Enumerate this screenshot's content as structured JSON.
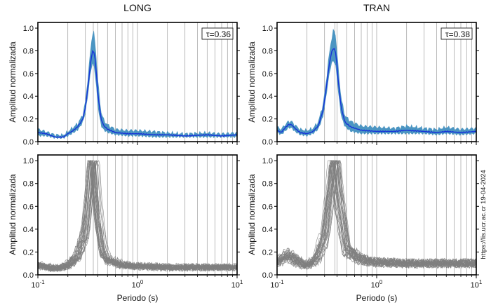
{
  "credit": "https://lis.ucr.ac.cr 19-04-2024",
  "colors": {
    "band": "#4b95c2",
    "mean": "#1733d8",
    "individual": "#7f7f7f",
    "grid": "#8c8c8c"
  },
  "chart_data": [
    {
      "type": "line",
      "panel": "top-left",
      "title": "LONG",
      "xlabel": "",
      "ylabel": "Amplitud normalizada",
      "xscale": "log",
      "xlim": [
        0.1,
        10
      ],
      "ylim": [
        0,
        1.05
      ],
      "x_tick_labels": [
        "10-1",
        "100",
        "101"
      ],
      "y_tick_labels": [
        "0.0",
        "0.2",
        "0.4",
        "0.6",
        "0.8",
        "1.0"
      ],
      "annotation": "τ=0.36",
      "vertical_gridlines_periods": [
        0.2,
        0.3,
        0.36,
        0.4,
        0.5,
        0.6,
        0.7,
        0.8,
        0.9,
        1,
        2,
        3,
        4,
        5,
        6,
        7,
        8,
        9,
        10
      ],
      "series": [
        {
          "style": "mean line with shaded band",
          "x": [
            0.1,
            0.12,
            0.15,
            0.18,
            0.2,
            0.22,
            0.25,
            0.28,
            0.3,
            0.32,
            0.34,
            0.36,
            0.38,
            0.4,
            0.43,
            0.46,
            0.5,
            0.6,
            0.8,
            1.0,
            1.5,
            2,
            3,
            5,
            7,
            10
          ],
          "mean": [
            0.08,
            0.07,
            0.04,
            0.04,
            0.07,
            0.09,
            0.13,
            0.19,
            0.3,
            0.5,
            0.72,
            0.82,
            0.7,
            0.42,
            0.2,
            0.14,
            0.11,
            0.08,
            0.07,
            0.07,
            0.06,
            0.06,
            0.05,
            0.06,
            0.05,
            0.06
          ],
          "lower": [
            0.05,
            0.05,
            0.03,
            0.03,
            0.05,
            0.07,
            0.1,
            0.16,
            0.25,
            0.42,
            0.63,
            0.7,
            0.55,
            0.3,
            0.14,
            0.1,
            0.08,
            0.06,
            0.05,
            0.05,
            0.04,
            0.04,
            0.04,
            0.04,
            0.04,
            0.04
          ],
          "upper": [
            0.11,
            0.09,
            0.06,
            0.06,
            0.09,
            0.12,
            0.16,
            0.23,
            0.36,
            0.6,
            0.85,
            1.0,
            0.85,
            0.55,
            0.27,
            0.19,
            0.15,
            0.11,
            0.1,
            0.1,
            0.09,
            0.08,
            0.07,
            0.08,
            0.07,
            0.08
          ]
        }
      ]
    },
    {
      "type": "line",
      "panel": "top-right",
      "title": "TRAN",
      "xlabel": "",
      "ylabel": "Amplitud normalizada",
      "xscale": "log",
      "xlim": [
        0.1,
        10
      ],
      "ylim": [
        0,
        1.05
      ],
      "x_tick_labels": [
        "10-1",
        "100",
        "101"
      ],
      "y_tick_labels": [
        "0.0",
        "0.2",
        "0.4",
        "0.6",
        "0.8",
        "1.0"
      ],
      "annotation": "τ=0.38",
      "vertical_gridlines_periods": [
        0.2,
        0.3,
        0.38,
        0.4,
        0.5,
        0.6,
        0.7,
        0.8,
        0.9,
        1,
        2,
        3,
        4,
        5,
        6,
        7,
        8,
        9,
        10
      ],
      "series": [
        {
          "style": "mean line with shaded band",
          "x": [
            0.1,
            0.11,
            0.12,
            0.13,
            0.14,
            0.15,
            0.17,
            0.2,
            0.23,
            0.26,
            0.29,
            0.31,
            0.33,
            0.35,
            0.37,
            0.39,
            0.41,
            0.44,
            0.48,
            0.55,
            0.7,
            1.0,
            1.5,
            2,
            3,
            4,
            5,
            7,
            10
          ],
          "mean": [
            0.1,
            0.08,
            0.12,
            0.15,
            0.15,
            0.12,
            0.08,
            0.07,
            0.09,
            0.14,
            0.28,
            0.45,
            0.65,
            0.78,
            0.83,
            0.78,
            0.55,
            0.3,
            0.17,
            0.13,
            0.1,
            0.09,
            0.09,
            0.1,
            0.09,
            0.08,
            0.09,
            0.08,
            0.09
          ],
          "lower": [
            0.08,
            0.06,
            0.09,
            0.12,
            0.12,
            0.09,
            0.06,
            0.05,
            0.07,
            0.11,
            0.22,
            0.38,
            0.56,
            0.68,
            0.72,
            0.65,
            0.44,
            0.22,
            0.13,
            0.09,
            0.07,
            0.07,
            0.07,
            0.07,
            0.07,
            0.06,
            0.07,
            0.06,
            0.07
          ],
          "upper": [
            0.13,
            0.11,
            0.15,
            0.18,
            0.18,
            0.15,
            0.11,
            0.1,
            0.12,
            0.18,
            0.34,
            0.53,
            0.75,
            0.9,
            1.0,
            0.93,
            0.68,
            0.39,
            0.23,
            0.18,
            0.14,
            0.13,
            0.12,
            0.14,
            0.12,
            0.11,
            0.13,
            0.11,
            0.12
          ]
        }
      ]
    },
    {
      "type": "line",
      "panel": "bottom-left",
      "title": "",
      "xlabel": "Periodo (s)",
      "ylabel": "Amplitud normalizada",
      "xscale": "log",
      "xlim": [
        0.1,
        10
      ],
      "ylim": [
        0,
        1.05
      ],
      "x_tick_labels": [
        "10-1",
        "100",
        "101"
      ],
      "y_tick_labels": [
        "0.0",
        "0.2",
        "0.4",
        "0.6",
        "0.8",
        "1.0"
      ],
      "style": "about 30 individual normalized spectra (thin gray), peaking near 0.36 s",
      "series": [
        {
          "x": [
            0.1,
            0.15,
            0.2,
            0.25,
            0.3,
            0.33,
            0.36,
            0.4,
            0.45,
            0.5,
            0.7,
            1.0,
            2,
            5,
            10
          ],
          "typical": [
            0.08,
            0.05,
            0.07,
            0.14,
            0.32,
            0.62,
            1.0,
            0.5,
            0.2,
            0.12,
            0.08,
            0.07,
            0.06,
            0.06,
            0.06
          ]
        }
      ]
    },
    {
      "type": "line",
      "panel": "bottom-right",
      "title": "",
      "xlabel": "Periodo (s)",
      "ylabel": "Amplitud normalizada",
      "xscale": "log",
      "xlim": [
        0.1,
        10
      ],
      "ylim": [
        0,
        1.05
      ],
      "x_tick_labels": [
        "10-1",
        "100",
        "101"
      ],
      "y_tick_labels": [
        "0.0",
        "0.2",
        "0.4",
        "0.6",
        "0.8",
        "1.0"
      ],
      "style": "about 30 individual normalized spectra (thin gray), peaking near 0.38 s",
      "series": [
        {
          "x": [
            0.1,
            0.13,
            0.15,
            0.2,
            0.25,
            0.3,
            0.34,
            0.38,
            0.42,
            0.5,
            0.7,
            1.0,
            2,
            5,
            10
          ],
          "typical": [
            0.1,
            0.16,
            0.12,
            0.07,
            0.13,
            0.3,
            0.65,
            1.0,
            0.6,
            0.2,
            0.12,
            0.1,
            0.09,
            0.09,
            0.09
          ]
        }
      ]
    }
  ]
}
